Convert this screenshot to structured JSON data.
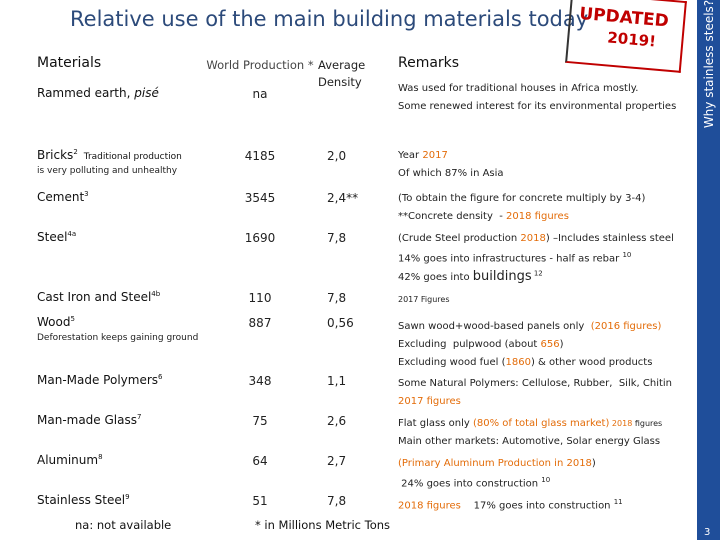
{
  "header": {
    "title": "Relative use of the main building materials today",
    "stamp": [
      "UPDATED",
      "2019!"
    ],
    "side_title": "Why stainless steels?",
    "page_number": "3"
  },
  "table": {
    "columns": [
      "Materials",
      "World Production *",
      "Average Density",
      "Remarks"
    ],
    "rows": [
      {
        "material": "Rammed earth,",
        "material_italic": "pisé",
        "production": "na",
        "density": "",
        "remarks": [
          [
            {
              "text": "Was used for traditional houses in Africa mostly."
            }
          ],
          [
            {
              "text": "Some renewed interest for its environmental properties"
            }
          ]
        ]
      },
      {
        "material": "Bricks",
        "note": "2",
        "subnote": [
          "Traditional production",
          "is very polluting and unhealthy"
        ],
        "production": "4185",
        "density": "2,0",
        "remarks": [
          [
            {
              "text": "Year "
            },
            {
              "text": "2017",
              "color": "#e36c09"
            }
          ],
          [
            {
              "text": "Of which 87% in Asia"
            }
          ]
        ]
      },
      {
        "material": "Cement",
        "note": "3",
        "production": "3545",
        "density": "2,4**",
        "remarks": [
          [
            {
              "text": "(To obtain the figure for concrete multiply by 3-4)"
            }
          ],
          [
            {
              "text": "**Concrete density  - "
            },
            {
              "text": "2018 figures",
              "color": "#e36c09"
            }
          ]
        ]
      },
      {
        "material": "Steel",
        "note": "4a",
        "production": "1690",
        "density": "7,8",
        "remarks": [
          [
            {
              "text": "(Crude Steel production "
            },
            {
              "text": "2018",
              "color": "#e36c09"
            },
            {
              "text": ") –Includes stainless steel"
            }
          ],
          [
            {
              "text": "14% goes into infrastructures - half as rebar "
            },
            {
              "text": "10",
              "sup": true
            }
          ],
          [
            {
              "text": "42% goes into "
            },
            {
              "text": "buildings",
              "big": true
            },
            {
              "text": " 12",
              "sup": true
            }
          ]
        ]
      },
      {
        "material": "Cast Iron and Steel",
        "note": "4b",
        "production": "110",
        "density": "7,8",
        "remarks": [
          [
            {
              "text": "2017 Figures",
              "small": true
            }
          ]
        ]
      },
      {
        "material": "Wood",
        "note": "5",
        "subnote": [
          "Deforestation keeps gaining ground"
        ],
        "production": "887",
        "density": "0,56",
        "remarks": [
          [
            {
              "text": "Sawn wood+wood-based panels only  "
            },
            {
              "text": "(2016 figures)",
              "color": "#e36c09"
            }
          ],
          [
            {
              "text": "Excluding  pulpwood (about "
            },
            {
              "text": "656",
              "color": "#e36c09"
            },
            {
              "text": ")"
            }
          ],
          [
            {
              "text": "Excluding wood fuel ("
            },
            {
              "text": "1860",
              "color": "#e36c09"
            },
            {
              "text": ") & other wood products"
            }
          ]
        ]
      },
      {
        "material": "Man-Made Polymers",
        "note": "6",
        "production": "348",
        "density": "1,1",
        "remarks": [
          [
            {
              "text": "Some Natural Polymers: Cellulose, Rubber,  Silk, Chitin"
            }
          ],
          [
            {
              "text": "2017 figures",
              "color": "#e36c09"
            }
          ]
        ]
      },
      {
        "material": "Man-made Glass",
        "note": "7",
        "production": "75",
        "density": "2,6",
        "remarks": [
          [
            {
              "text": "Flat glass only "
            },
            {
              "text": "(80% of total glass market)",
              "color": "#e36c09"
            },
            {
              "text": " 2018 ",
              "color": "#e36c09",
              "small": true
            },
            {
              "text": "figures",
              "small": true
            }
          ],
          [
            {
              "text": "Main other markets: Automotive, Solar energy Glass"
            }
          ]
        ]
      },
      {
        "material": "Aluminum",
        "note": "8",
        "production": "64",
        "density": "2,7",
        "remarks": [
          [
            {
              "text": "(Primary Aluminum Production in 2018",
              "color": "#e36c09"
            },
            {
              "text": ")"
            }
          ],
          [
            {
              "text": " 24% goes into construction "
            },
            {
              "text": "10",
              "sup": true
            }
          ]
        ]
      },
      {
        "material": "Stainless Steel",
        "note": "9",
        "production": "51",
        "density": "7,8",
        "remarks": [
          [
            {
              "text": "2018 figures",
              "color": "#e36c09"
            },
            {
              "text": "    17% goes into construction "
            },
            {
              "text": "11",
              "sup": true
            }
          ]
        ]
      }
    ]
  },
  "footer": {
    "left": "na: not available",
    "center": "* in Millions Metric Tons"
  }
}
